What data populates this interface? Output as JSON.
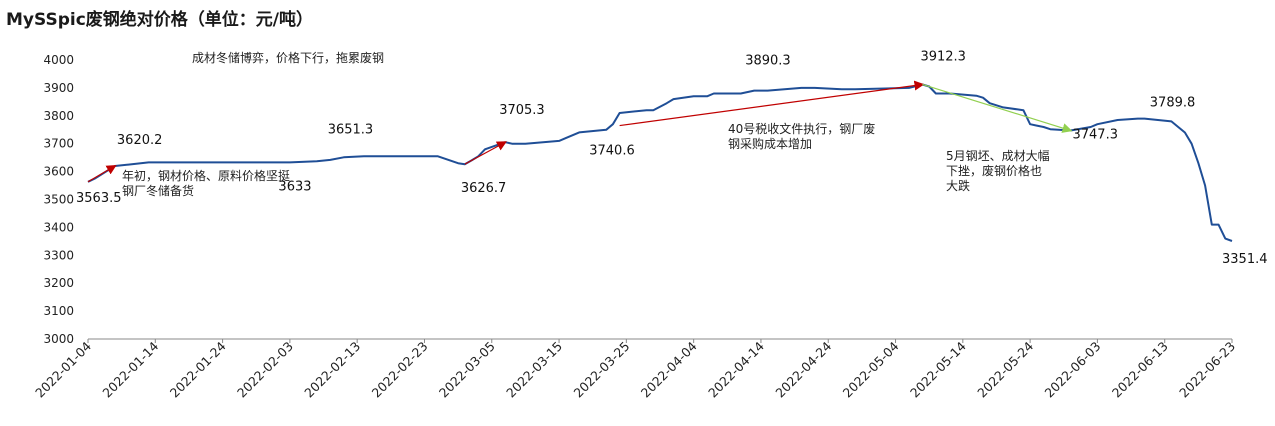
{
  "chart_data": {
    "type": "line",
    "title": "MySSpic废钢绝对价格（单位：元/吨）",
    "ylim": [
      3000,
      4000
    ],
    "yticks": [
      3000,
      3100,
      3200,
      3300,
      3400,
      3500,
      3600,
      3700,
      3800,
      3900,
      4000
    ],
    "xticks": [
      "2022-01-04",
      "2022-01-14",
      "2022-01-24",
      "2022-02-03",
      "2022-02-13",
      "2022-02-23",
      "2022-03-05",
      "2022-03-15",
      "2022-03-25",
      "2022-04-04",
      "2022-04-14",
      "2022-04-24",
      "2022-05-04",
      "2022-05-14",
      "2022-05-24",
      "2022-06-03",
      "2022-06-13",
      "2022-06-23"
    ],
    "grid": false,
    "line_color": "#1f4e96",
    "x_start": "2022-01-04",
    "x_end": "2022-06-23",
    "series": [
      {
        "name": "",
        "x": [
          "2022-01-04",
          "2022-01-05",
          "2022-01-06",
          "2022-01-07",
          "2022-01-08",
          "2022-01-10",
          "2022-01-13",
          "2022-01-14",
          "2022-01-18",
          "2022-01-20",
          "2022-01-24",
          "2022-02-03",
          "2022-02-07",
          "2022-02-09",
          "2022-02-11",
          "2022-02-14",
          "2022-02-16",
          "2022-02-18",
          "2022-02-25",
          "2022-02-28",
          "2022-03-01",
          "2022-03-02",
          "2022-03-03",
          "2022-03-04",
          "2022-03-07",
          "2022-03-08",
          "2022-03-10",
          "2022-03-15",
          "2022-03-16",
          "2022-03-18",
          "2022-03-22",
          "2022-03-23",
          "2022-03-24",
          "2022-03-28",
          "2022-03-29",
          "2022-03-31",
          "2022-04-01",
          "2022-04-04",
          "2022-04-06",
          "2022-04-07",
          "2022-04-11",
          "2022-04-13",
          "2022-04-15",
          "2022-04-20",
          "2022-04-22",
          "2022-04-26",
          "2022-04-28",
          "2022-05-06",
          "2022-05-08",
          "2022-05-09",
          "2022-05-10",
          "2022-05-11",
          "2022-05-12",
          "2022-05-13",
          "2022-05-16",
          "2022-05-17",
          "2022-05-18",
          "2022-05-20",
          "2022-05-23",
          "2022-05-24",
          "2022-05-25",
          "2022-05-26",
          "2022-05-27",
          "2022-05-30",
          "2022-06-02",
          "2022-06-03",
          "2022-06-06",
          "2022-06-09",
          "2022-06-10",
          "2022-06-14",
          "2022-06-15",
          "2022-06-16",
          "2022-06-17",
          "2022-06-18",
          "2022-06-19",
          "2022-06-20",
          "2022-06-21",
          "2022-06-22",
          "2022-06-23"
        ],
        "values": [
          3563.5,
          3575,
          3590,
          3605,
          3620.2,
          3625,
          3633,
          3633,
          3633,
          3633,
          3633,
          3633,
          3637,
          3642,
          3651.3,
          3655,
          3655,
          3655,
          3655,
          3630,
          3626.7,
          3640,
          3655,
          3680,
          3705.3,
          3700,
          3700,
          3710,
          3720,
          3740.6,
          3750,
          3770,
          3810,
          3820,
          3820,
          3845,
          3860,
          3870,
          3870,
          3880,
          3880,
          3890.3,
          3890.3,
          3900,
          3900,
          3895,
          3895,
          3900,
          3912.3,
          3905,
          3880,
          3880,
          3880,
          3878,
          3872,
          3865,
          3845,
          3830,
          3820,
          3770,
          3765,
          3760,
          3752,
          3747.3,
          3760,
          3770,
          3785,
          3789.8,
          3790,
          3780,
          3760,
          3740,
          3700,
          3630,
          3550,
          3410,
          3410,
          3360,
          3351.4
        ]
      }
    ],
    "data_labels": [
      {
        "text": "3563.5",
        "x": "2022-01-04",
        "y": 3563.5
      },
      {
        "text": "3620.2",
        "x": "2022-01-08",
        "y": 3620.2
      },
      {
        "text": "3633",
        "x": "2022-02-01",
        "y": 3633
      },
      {
        "text": "3651.3",
        "x": "2022-02-11",
        "y": 3651.3
      },
      {
        "text": "3626.7",
        "x": "2022-03-01",
        "y": 3626.7
      },
      {
        "text": "3705.3",
        "x": "2022-03-07",
        "y": 3705.3
      },
      {
        "text": "3740.6",
        "x": "2022-03-18",
        "y": 3740.6
      },
      {
        "text": "3890.3",
        "x": "2022-04-13",
        "y": 3890.3
      },
      {
        "text": "3912.3",
        "x": "2022-05-08",
        "y": 3912.3
      },
      {
        "text": "3747.3",
        "x": "2022-05-30",
        "y": 3747.3
      },
      {
        "text": "3789.8",
        "x": "2022-06-09",
        "y": 3789.8
      },
      {
        "text": "3351.4",
        "x": "2022-06-23",
        "y": 3351.4
      }
    ],
    "annotations": [
      {
        "lines": [
          "成材冬储博弈，价格下行，拖累废钢"
        ]
      },
      {
        "lines": [
          "年初，钢材价格、原料价格坚挺",
          "钢厂冬储备货"
        ]
      },
      {
        "lines": [
          "40号税收文件执行，钢厂废",
          "钢采购成本增加"
        ]
      },
      {
        "lines": [
          "5月钢坯、成材大幅",
          "下挫，废钢价格也",
          "大跌"
        ]
      }
    ],
    "arrows": [
      {
        "color": "#c00000",
        "from": [
          "2022-01-04",
          3563.5
        ],
        "to": [
          "2022-01-08",
          3620.2
        ]
      },
      {
        "color": "#c00000",
        "from": [
          "2022-03-01",
          3626.7
        ],
        "to": [
          "2022-03-07",
          3705.3
        ]
      },
      {
        "color": "#c00000",
        "from": [
          "2022-03-24",
          3765
        ],
        "to": [
          "2022-05-08",
          3912.3
        ]
      },
      {
        "color": "#92d050",
        "from": [
          "2022-05-08",
          3912.3
        ],
        "to": [
          "2022-05-30",
          3747.3
        ]
      }
    ]
  }
}
